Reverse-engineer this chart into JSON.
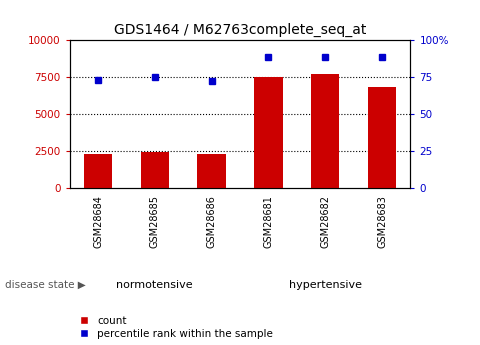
{
  "title": "GDS1464 / M62763complete_seq_at",
  "categories": [
    "GSM28684",
    "GSM28685",
    "GSM28686",
    "GSM28681",
    "GSM28682",
    "GSM28683"
  ],
  "count_values": [
    2300,
    2400,
    2300,
    7500,
    7700,
    6800
  ],
  "percentile_values": [
    73,
    75,
    72,
    88,
    88,
    88
  ],
  "bar_color": "#cc0000",
  "dot_color": "#0000cc",
  "left_ylim": [
    0,
    10000
  ],
  "right_ylim": [
    0,
    100
  ],
  "left_yticks": [
    0,
    2500,
    5000,
    7500,
    10000
  ],
  "right_yticks": [
    0,
    25,
    50,
    75,
    100
  ],
  "right_yticklabels": [
    "0",
    "25",
    "50",
    "75",
    "100%"
  ],
  "gridlines_at": [
    2500,
    5000,
    7500
  ],
  "groups": [
    {
      "label": "normotensive",
      "color": "#aaffaa"
    },
    {
      "label": "hypertensive",
      "color": "#44ee44"
    }
  ],
  "group_label_prefix": "disease state",
  "legend_count_label": "count",
  "legend_percentile_label": "percentile rank within the sample",
  "title_fontsize": 10,
  "axis_label_color_left": "#cc0000",
  "axis_label_color_right": "#0000cc",
  "bar_width": 0.5,
  "tick_area_bg": "#d8d8d8",
  "fig_bg": "#ffffff"
}
